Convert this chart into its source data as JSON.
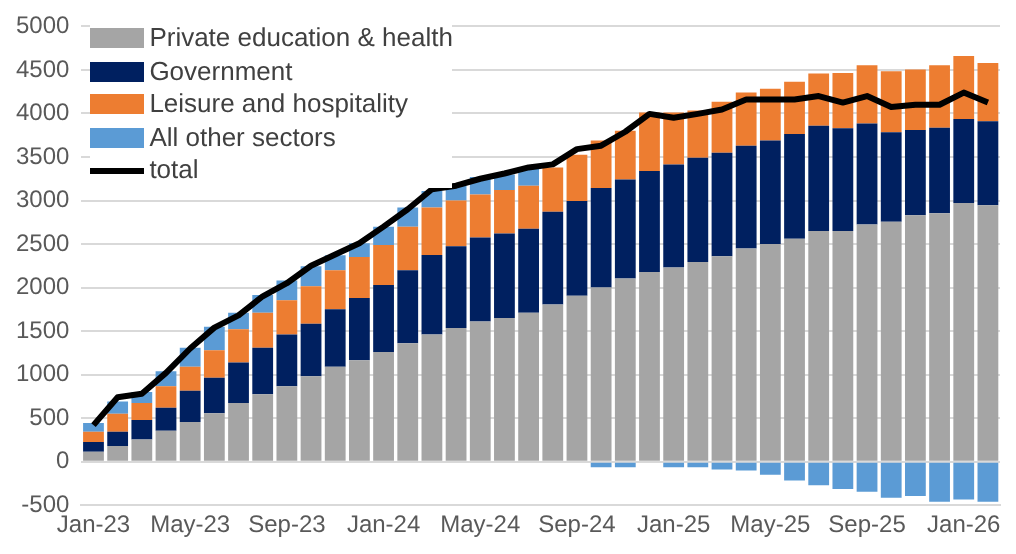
{
  "chart_data": {
    "type": "bar",
    "stacked": true,
    "categories": [
      "Jan-23",
      null,
      null,
      null,
      "May-23",
      null,
      null,
      null,
      "Sep-23",
      null,
      null,
      null,
      "Jan-24",
      null,
      null,
      null,
      "May-24",
      null,
      null,
      null,
      "Sep-24",
      null,
      null,
      null,
      "Jan-25",
      null,
      null,
      null,
      "May-25",
      null,
      null,
      null,
      "Sep-25",
      null,
      null,
      null,
      "Jan-26",
      null
    ],
    "series": [
      {
        "name": "Private education & health",
        "color": "#a5a5a5",
        "values": [
          115,
          180,
          255,
          355,
          455,
          555,
          675,
          775,
          865,
          980,
          1090,
          1165,
          1260,
          1360,
          1460,
          1535,
          1610,
          1650,
          1710,
          1805,
          1905,
          2000,
          2105,
          2180,
          2230,
          2295,
          2360,
          2450,
          2500,
          2560,
          2650,
          2650,
          2725,
          2755,
          2830,
          2855,
          2970,
          2945
        ]
      },
      {
        "name": "Government",
        "color": "#002060",
        "values": [
          110,
          165,
          225,
          265,
          360,
          410,
          465,
          535,
          595,
          605,
          660,
          715,
          770,
          840,
          915,
          940,
          965,
          970,
          965,
          1065,
          1090,
          1145,
          1135,
          1160,
          1185,
          1195,
          1190,
          1180,
          1190,
          1205,
          1210,
          1180,
          1160,
          1030,
          980,
          980,
          965,
          965
        ]
      },
      {
        "name": "Leisure and hospitality",
        "color": "#ed7d31",
        "values": [
          120,
          205,
          195,
          245,
          275,
          315,
          380,
          400,
          395,
          430,
          450,
          470,
          460,
          500,
          545,
          525,
          495,
          500,
          495,
          510,
          530,
          545,
          560,
          670,
          595,
          545,
          585,
          610,
          595,
          600,
          600,
          635,
          670,
          700,
          695,
          720,
          725,
          670
        ]
      },
      {
        "name": "All other sectors",
        "color": "#5b9bd5",
        "values": [
          100,
          140,
          125,
          175,
          220,
          270,
          190,
          205,
          225,
          230,
          170,
          160,
          210,
          220,
          190,
          170,
          200,
          180,
          215,
          null,
          null,
          -65,
          -65,
          0,
          -65,
          -65,
          -90,
          -100,
          -150,
          -215,
          -270,
          -315,
          -345,
          -415,
          -395,
          -460,
          -435,
          -460
        ]
      },
      {
        "name": "total",
        "type": "line",
        "color": "#000000",
        "values": [
          420,
          740,
          780,
          1020,
          1300,
          1540,
          1680,
          1900,
          2050,
          2250,
          2380,
          2510,
          2700,
          2900,
          3130,
          3170,
          3250,
          3310,
          3380,
          3415,
          3590,
          3630,
          3790,
          3995,
          3950,
          3995,
          4045,
          4160,
          4160,
          4160,
          4200,
          4125,
          4200,
          4075,
          4100,
          4100,
          4240,
          4125
        ]
      }
    ],
    "ylim": [
      -500,
      5000
    ],
    "yticks": [
      -500,
      0,
      500,
      1000,
      1500,
      2000,
      2500,
      3000,
      3500,
      4000,
      4500,
      5000
    ],
    "grid": "y",
    "legend": "top left"
  }
}
